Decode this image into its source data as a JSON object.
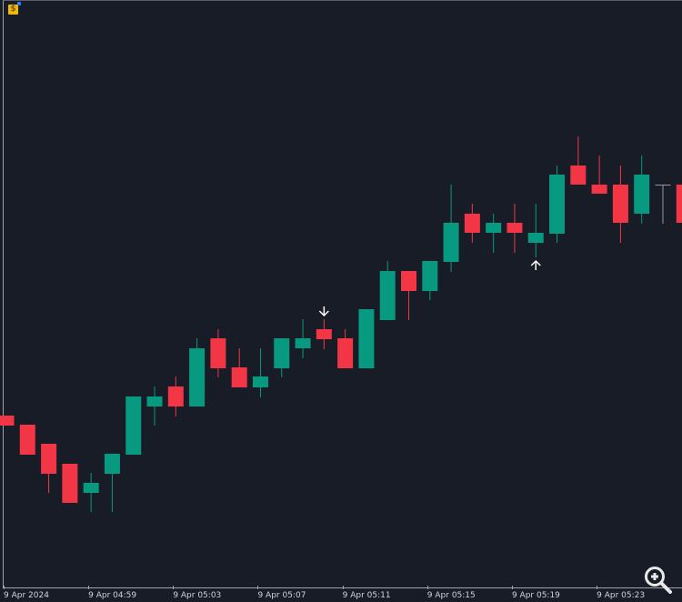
{
  "chart_data": {
    "type": "candlestick",
    "title": "",
    "xlabel": "",
    "ylabel": "",
    "x_tick_labels": [
      "9 Apr 2024",
      "9 Apr 04:59",
      "9 Apr 05:03",
      "9 Apr 05:07",
      "9 Apr 05:11",
      "9 Apr 05:15",
      "9 Apr 05:19",
      "9 Apr 05:23"
    ],
    "timeframe_minutes": 1,
    "first_candle_time": "9 Apr 04:55",
    "y_axis_shown": false,
    "ylim": [
      0,
      650
    ],
    "grid": false,
    "colors": {
      "up": "#089981",
      "down": "#f23645",
      "doji": "#9598a1",
      "background": "#181c27",
      "axis": "#a0a3aa",
      "text": "#d1d4dc"
    },
    "candles": [
      {
        "o": 193,
        "h": 193,
        "l": 182,
        "c": 182
      },
      {
        "o": 183,
        "h": 183,
        "l": 150,
        "c": 150
      },
      {
        "o": 162,
        "h": 162,
        "l": 108,
        "c": 129
      },
      {
        "o": 140,
        "h": 140,
        "l": 97,
        "c": 97
      },
      {
        "o": 108,
        "h": 130,
        "l": 87,
        "c": 119
      },
      {
        "o": 129,
        "h": 151,
        "l": 87,
        "c": 151
      },
      {
        "o": 150,
        "h": 214,
        "l": 150,
        "c": 214
      },
      {
        "o": 203,
        "h": 225,
        "l": 182,
        "c": 214
      },
      {
        "o": 225,
        "h": 236,
        "l": 192,
        "c": 203
      },
      {
        "o": 203,
        "h": 278,
        "l": 203,
        "c": 267
      },
      {
        "o": 278,
        "h": 288,
        "l": 235,
        "c": 245
      },
      {
        "o": 246,
        "h": 267,
        "l": 224,
        "c": 224
      },
      {
        "o": 224,
        "h": 267,
        "l": 213,
        "c": 236
      },
      {
        "o": 245,
        "h": 278,
        "l": 235,
        "c": 278
      },
      {
        "o": 267,
        "h": 299,
        "l": 256,
        "c": 278
      },
      {
        "o": 288,
        "h": 299,
        "l": 266,
        "c": 277
      },
      {
        "o": 278,
        "h": 288,
        "l": 245,
        "c": 245
      },
      {
        "o": 245,
        "h": 310,
        "l": 245,
        "c": 310
      },
      {
        "o": 298,
        "h": 363,
        "l": 298,
        "c": 352
      },
      {
        "o": 352,
        "h": 352,
        "l": 298,
        "c": 330
      },
      {
        "o": 330,
        "h": 363,
        "l": 320,
        "c": 363
      },
      {
        "o": 362,
        "h": 447,
        "l": 351,
        "c": 405
      },
      {
        "o": 415,
        "h": 426,
        "l": 383,
        "c": 394
      },
      {
        "o": 394,
        "h": 415,
        "l": 372,
        "c": 405
      },
      {
        "o": 405,
        "h": 426,
        "l": 372,
        "c": 394
      },
      {
        "o": 383,
        "h": 426,
        "l": 367,
        "c": 394
      },
      {
        "o": 393,
        "h": 468,
        "l": 383,
        "c": 458
      },
      {
        "o": 468,
        "h": 500,
        "l": 447,
        "c": 447
      },
      {
        "o": 447,
        "h": 479,
        "l": 437,
        "c": 437
      },
      {
        "o": 447,
        "h": 468,
        "l": 383,
        "c": 405
      },
      {
        "o": 415,
        "h": 479,
        "l": 404,
        "c": 458
      },
      {
        "o": 447,
        "h": 447,
        "l": 404,
        "c": 447
      },
      {
        "o": 447,
        "h": 458,
        "l": 405,
        "c": 405
      }
    ],
    "signals": [
      {
        "candle_index": 15,
        "type": "sell",
        "icon": "arrow-down-icon"
      },
      {
        "candle_index": 25,
        "type": "buy",
        "icon": "arrow-up-icon"
      }
    ]
  },
  "toolbar": {
    "logo_icon": "dollar-file-icon",
    "zoom_icon": "zoom-in-icon"
  }
}
